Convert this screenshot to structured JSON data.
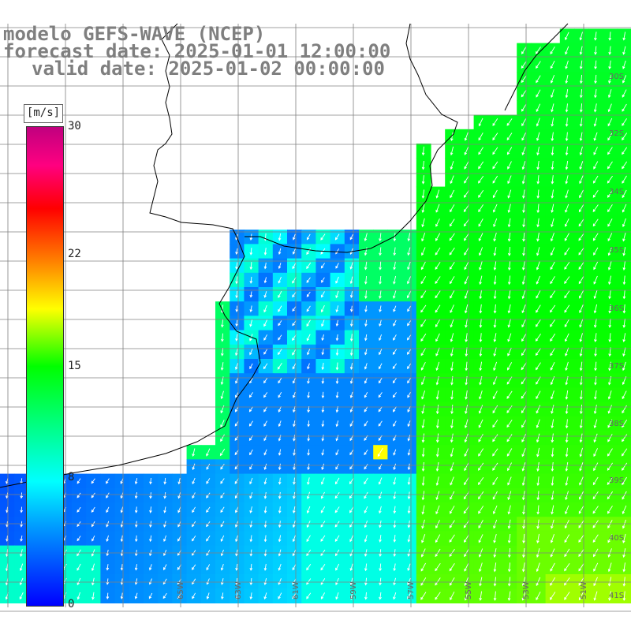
{
  "title": {
    "model": "modelo GEFS-WAVE (NCEP)",
    "forecast": "forecast date: 2025-01-01 12:00:00",
    "valid": "valid date: 2025-01-02 00:00:00"
  },
  "colorbar": {
    "unit": "[m/s]",
    "ticks": [
      "30",
      "22",
      "15",
      "8",
      "0"
    ],
    "tick_values": [
      30,
      22,
      15,
      8,
      0
    ],
    "colors": [
      "#0000ff",
      "#00a0ff",
      "#00ffff",
      "#00ff00",
      "#ffff00",
      "#ff8000",
      "#ff0000",
      "#c0007f"
    ]
  },
  "map": {
    "lat_labels": [
      "30S",
      "32S",
      "34S",
      "35S",
      "36S",
      "37S",
      "38S",
      "39S",
      "40S",
      "41S"
    ],
    "lon_labels": [
      "65W",
      "63W",
      "61W",
      "59W",
      "57W",
      "55W",
      "53W",
      "51W"
    ],
    "background": "#ffffff",
    "grid_color": "#808080",
    "coast_color": "#000000"
  }
}
